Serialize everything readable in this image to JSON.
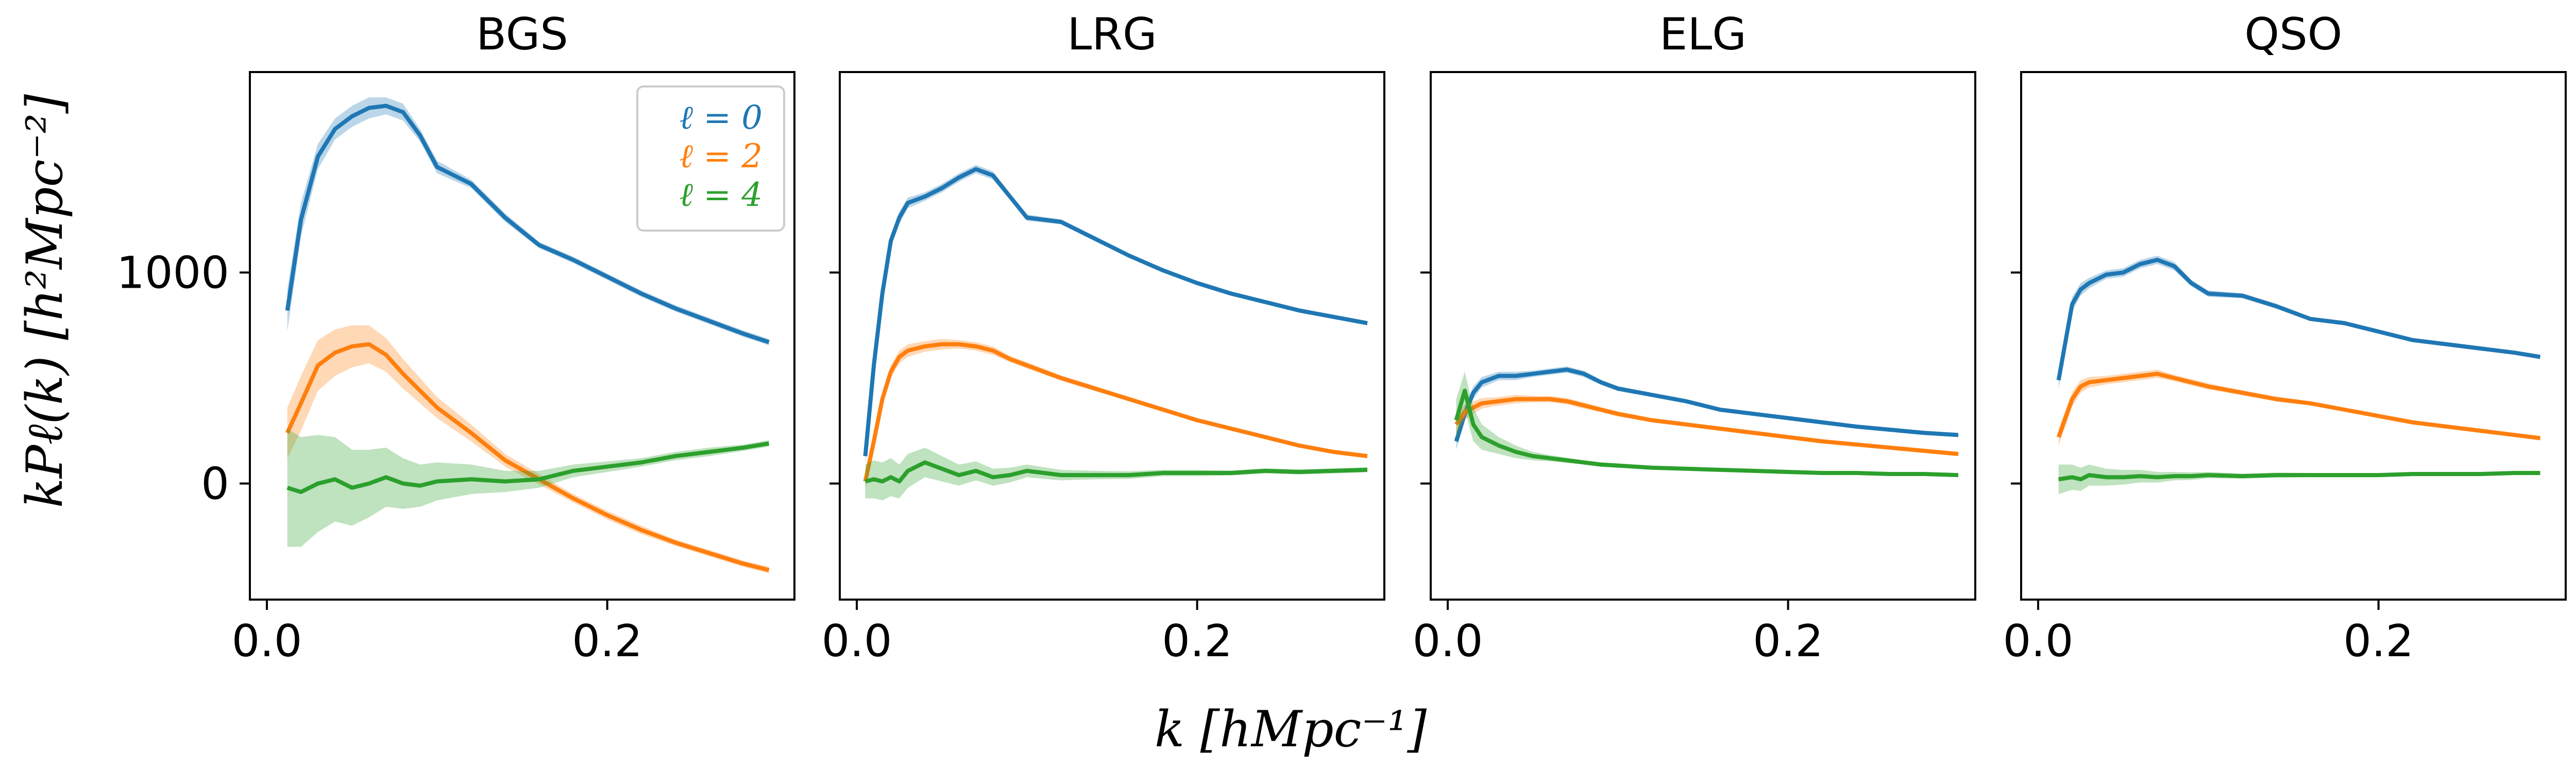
{
  "figure": {
    "ylabel": "kPℓ(k) [h²Mpc⁻²]",
    "xlabel": "k [hMpc⁻¹]"
  },
  "legend": {
    "entries": [
      {
        "label": "ℓ = 0",
        "color": "#1f77b4"
      },
      {
        "label": "ℓ = 2",
        "color": "#ff7f0e"
      },
      {
        "label": "ℓ = 4",
        "color": "#2ca02c"
      }
    ]
  },
  "chart_data": [
    {
      "type": "line",
      "title": "BGS",
      "xlim": [
        -0.01,
        0.31
      ],
      "ylim": [
        -550,
        1950
      ],
      "xticks": [
        0.0,
        0.2
      ],
      "xtick_labels": [
        "0.0",
        "0.2"
      ],
      "yticks": [
        0,
        1000
      ],
      "ytick_labels": [
        "0",
        "1000"
      ],
      "legend_placement": "top-right",
      "series": [
        {
          "name": "ℓ = 0",
          "color": "#1f77b4",
          "x": [
            0.012,
            0.02,
            0.03,
            0.04,
            0.05,
            0.06,
            0.07,
            0.08,
            0.09,
            0.1,
            0.12,
            0.14,
            0.16,
            0.18,
            0.2,
            0.22,
            0.24,
            0.26,
            0.28,
            0.295
          ],
          "y": [
            820,
            1250,
            1550,
            1680,
            1740,
            1780,
            1790,
            1760,
            1650,
            1500,
            1420,
            1260,
            1130,
            1060,
            980,
            900,
            830,
            770,
            710,
            670
          ],
          "band": [
            100,
            80,
            60,
            50,
            50,
            50,
            40,
            40,
            30,
            30,
            20,
            20,
            15,
            15,
            15,
            15,
            15,
            15,
            15,
            15
          ]
        },
        {
          "name": "ℓ = 2",
          "color": "#ff7f0e",
          "x": [
            0.012,
            0.02,
            0.03,
            0.04,
            0.05,
            0.06,
            0.07,
            0.08,
            0.09,
            0.1,
            0.12,
            0.14,
            0.16,
            0.18,
            0.2,
            0.22,
            0.24,
            0.26,
            0.28,
            0.295
          ],
          "y": [
            240,
            380,
            560,
            620,
            650,
            660,
            610,
            520,
            440,
            360,
            240,
            110,
            20,
            -70,
            -150,
            -220,
            -280,
            -330,
            -380,
            -410
          ],
          "band": [
            120,
            130,
            120,
            110,
            100,
            90,
            80,
            70,
            60,
            50,
            40,
            30,
            25,
            20,
            20,
            20,
            15,
            15,
            15,
            15
          ]
        },
        {
          "name": "ℓ = 4",
          "color": "#2ca02c",
          "x": [
            0.012,
            0.02,
            0.03,
            0.04,
            0.05,
            0.06,
            0.07,
            0.08,
            0.09,
            0.1,
            0.12,
            0.14,
            0.16,
            0.18,
            0.2,
            0.22,
            0.24,
            0.26,
            0.28,
            0.295
          ],
          "y": [
            -20,
            -40,
            0,
            20,
            -20,
            0,
            30,
            0,
            -10,
            10,
            20,
            10,
            20,
            60,
            80,
            100,
            130,
            150,
            170,
            190
          ],
          "band": [
            280,
            260,
            230,
            200,
            180,
            160,
            140,
            120,
            100,
            90,
            70,
            50,
            40,
            30,
            25,
            20,
            20,
            20,
            15,
            15
          ]
        }
      ]
    },
    {
      "type": "line",
      "title": "LRG",
      "xlim": [
        -0.01,
        0.31
      ],
      "ylim": [
        -550,
        1950
      ],
      "xticks": [
        0.0,
        0.2
      ],
      "xtick_labels": [
        "0.0",
        "0.2"
      ],
      "yticks": [
        0,
        1000
      ],
      "series": [
        {
          "name": "ℓ = 0",
          "color": "#1f77b4",
          "x": [
            0.005,
            0.01,
            0.015,
            0.02,
            0.025,
            0.03,
            0.04,
            0.05,
            0.06,
            0.07,
            0.08,
            0.09,
            0.1,
            0.12,
            0.14,
            0.16,
            0.18,
            0.2,
            0.22,
            0.24,
            0.26,
            0.28,
            0.3
          ],
          "y": [
            130,
            560,
            900,
            1150,
            1260,
            1330,
            1360,
            1400,
            1450,
            1490,
            1460,
            1360,
            1260,
            1240,
            1160,
            1080,
            1010,
            950,
            900,
            860,
            820,
            790,
            760
          ],
          "band": [
            40,
            40,
            35,
            30,
            30,
            25,
            20,
            20,
            20,
            20,
            20,
            15,
            15,
            12,
            12,
            10,
            10,
            10,
            10,
            10,
            10,
            10,
            10
          ]
        },
        {
          "name": "ℓ = 2",
          "color": "#ff7f0e",
          "x": [
            0.005,
            0.01,
            0.015,
            0.02,
            0.025,
            0.03,
            0.04,
            0.05,
            0.06,
            0.07,
            0.08,
            0.09,
            0.1,
            0.12,
            0.14,
            0.16,
            0.18,
            0.2,
            0.22,
            0.24,
            0.26,
            0.28,
            0.3
          ],
          "y": [
            10,
            200,
            400,
            530,
            600,
            630,
            650,
            660,
            660,
            650,
            630,
            590,
            560,
            500,
            450,
            400,
            350,
            300,
            260,
            220,
            180,
            150,
            130
          ],
          "band": [
            40,
            40,
            35,
            30,
            30,
            30,
            25,
            25,
            20,
            20,
            20,
            15,
            15,
            12,
            12,
            10,
            10,
            10,
            10,
            10,
            10,
            10,
            10
          ]
        },
        {
          "name": "ℓ = 4",
          "color": "#2ca02c",
          "x": [
            0.005,
            0.01,
            0.015,
            0.02,
            0.025,
            0.03,
            0.04,
            0.05,
            0.06,
            0.07,
            0.08,
            0.09,
            0.1,
            0.12,
            0.14,
            0.16,
            0.18,
            0.2,
            0.22,
            0.24,
            0.26,
            0.28,
            0.3
          ],
          "y": [
            10,
            20,
            10,
            30,
            10,
            60,
            100,
            70,
            40,
            60,
            30,
            40,
            60,
            40,
            40,
            40,
            50,
            50,
            50,
            60,
            55,
            60,
            65
          ],
          "band": [
            80,
            90,
            90,
            90,
            80,
            80,
            70,
            60,
            50,
            45,
            40,
            35,
            30,
            25,
            20,
            18,
            15,
            15,
            12,
            12,
            12,
            12,
            12
          ]
        }
      ]
    },
    {
      "type": "line",
      "title": "ELG",
      "xlim": [
        -0.01,
        0.31
      ],
      "ylim": [
        -550,
        1950
      ],
      "xticks": [
        0.0,
        0.2
      ],
      "xtick_labels": [
        "0.0",
        "0.2"
      ],
      "yticks": [
        0,
        1000
      ],
      "series": [
        {
          "name": "ℓ = 0",
          "color": "#1f77b4",
          "x": [
            0.005,
            0.01,
            0.015,
            0.02,
            0.03,
            0.04,
            0.05,
            0.06,
            0.07,
            0.08,
            0.09,
            0.1,
            0.12,
            0.14,
            0.16,
            0.18,
            0.2,
            0.22,
            0.24,
            0.26,
            0.28,
            0.3
          ],
          "y": [
            200,
            330,
            430,
            480,
            510,
            510,
            520,
            530,
            540,
            520,
            480,
            450,
            420,
            390,
            350,
            330,
            310,
            290,
            270,
            255,
            240,
            230
          ],
          "band": [
            40,
            35,
            30,
            25,
            20,
            20,
            15,
            15,
            15,
            15,
            12,
            12,
            10,
            10,
            10,
            10,
            10,
            10,
            10,
            10,
            10,
            10
          ]
        },
        {
          "name": "ℓ = 2",
          "color": "#ff7f0e",
          "x": [
            0.005,
            0.01,
            0.015,
            0.02,
            0.03,
            0.04,
            0.05,
            0.06,
            0.07,
            0.08,
            0.09,
            0.1,
            0.12,
            0.14,
            0.16,
            0.18,
            0.2,
            0.22,
            0.24,
            0.26,
            0.28,
            0.3
          ],
          "y": [
            280,
            340,
            360,
            380,
            390,
            400,
            400,
            400,
            390,
            370,
            350,
            330,
            300,
            280,
            260,
            240,
            220,
            200,
            185,
            170,
            155,
            140
          ],
          "band": [
            40,
            35,
            30,
            25,
            20,
            20,
            15,
            15,
            15,
            15,
            12,
            12,
            10,
            10,
            10,
            10,
            10,
            10,
            10,
            10,
            10,
            10
          ]
        },
        {
          "name": "ℓ = 4",
          "color": "#2ca02c",
          "x": [
            0.005,
            0.01,
            0.015,
            0.02,
            0.03,
            0.04,
            0.05,
            0.06,
            0.07,
            0.08,
            0.09,
            0.1,
            0.12,
            0.14,
            0.16,
            0.18,
            0.2,
            0.22,
            0.24,
            0.26,
            0.28,
            0.3
          ],
          "y": [
            300,
            440,
            280,
            220,
            180,
            150,
            130,
            120,
            110,
            100,
            90,
            85,
            75,
            70,
            65,
            60,
            55,
            50,
            50,
            45,
            45,
            40
          ],
          "band": [
            100,
            90,
            80,
            60,
            40,
            30,
            20,
            15,
            12,
            10,
            10,
            10,
            8,
            8,
            8,
            8,
            8,
            8,
            8,
            8,
            8,
            8
          ]
        }
      ]
    },
    {
      "type": "line",
      "title": "QSO",
      "xlim": [
        -0.01,
        0.31
      ],
      "ylim": [
        -550,
        1950
      ],
      "xticks": [
        0.0,
        0.2
      ],
      "xtick_labels": [
        "0.0",
        "0.2"
      ],
      "yticks": [
        0,
        1000
      ],
      "series": [
        {
          "name": "ℓ = 0",
          "color": "#1f77b4",
          "x": [
            0.012,
            0.02,
            0.025,
            0.03,
            0.04,
            0.05,
            0.06,
            0.07,
            0.08,
            0.09,
            0.1,
            0.12,
            0.14,
            0.16,
            0.18,
            0.2,
            0.22,
            0.24,
            0.26,
            0.28,
            0.295
          ],
          "y": [
            490,
            850,
            920,
            950,
            990,
            1000,
            1040,
            1060,
            1030,
            950,
            900,
            890,
            840,
            780,
            760,
            720,
            680,
            660,
            640,
            620,
            600
          ],
          "band": [
            40,
            35,
            30,
            25,
            20,
            20,
            20,
            20,
            20,
            15,
            15,
            12,
            12,
            10,
            10,
            10,
            10,
            10,
            10,
            10,
            10
          ]
        },
        {
          "name": "ℓ = 2",
          "color": "#ff7f0e",
          "x": [
            0.012,
            0.02,
            0.025,
            0.03,
            0.04,
            0.05,
            0.06,
            0.07,
            0.08,
            0.09,
            0.1,
            0.12,
            0.14,
            0.16,
            0.18,
            0.2,
            0.22,
            0.24,
            0.26,
            0.28,
            0.295
          ],
          "y": [
            220,
            400,
            460,
            480,
            490,
            500,
            510,
            520,
            500,
            480,
            460,
            430,
            400,
            380,
            350,
            320,
            290,
            270,
            250,
            230,
            215
          ],
          "band": [
            40,
            35,
            30,
            25,
            20,
            20,
            20,
            20,
            15,
            15,
            15,
            12,
            12,
            10,
            10,
            10,
            10,
            10,
            10,
            10,
            10
          ]
        },
        {
          "name": "ℓ = 4",
          "color": "#2ca02c",
          "x": [
            0.012,
            0.02,
            0.025,
            0.03,
            0.04,
            0.05,
            0.06,
            0.07,
            0.08,
            0.09,
            0.1,
            0.12,
            0.14,
            0.16,
            0.18,
            0.2,
            0.22,
            0.24,
            0.26,
            0.28,
            0.295
          ],
          "y": [
            20,
            30,
            20,
            40,
            30,
            30,
            35,
            30,
            35,
            35,
            40,
            35,
            40,
            40,
            40,
            40,
            45,
            45,
            45,
            50,
            50
          ],
          "band": [
            70,
            60,
            55,
            50,
            40,
            35,
            30,
            25,
            20,
            18,
            15,
            12,
            12,
            10,
            10,
            10,
            10,
            10,
            10,
            10,
            10
          ]
        }
      ]
    }
  ]
}
